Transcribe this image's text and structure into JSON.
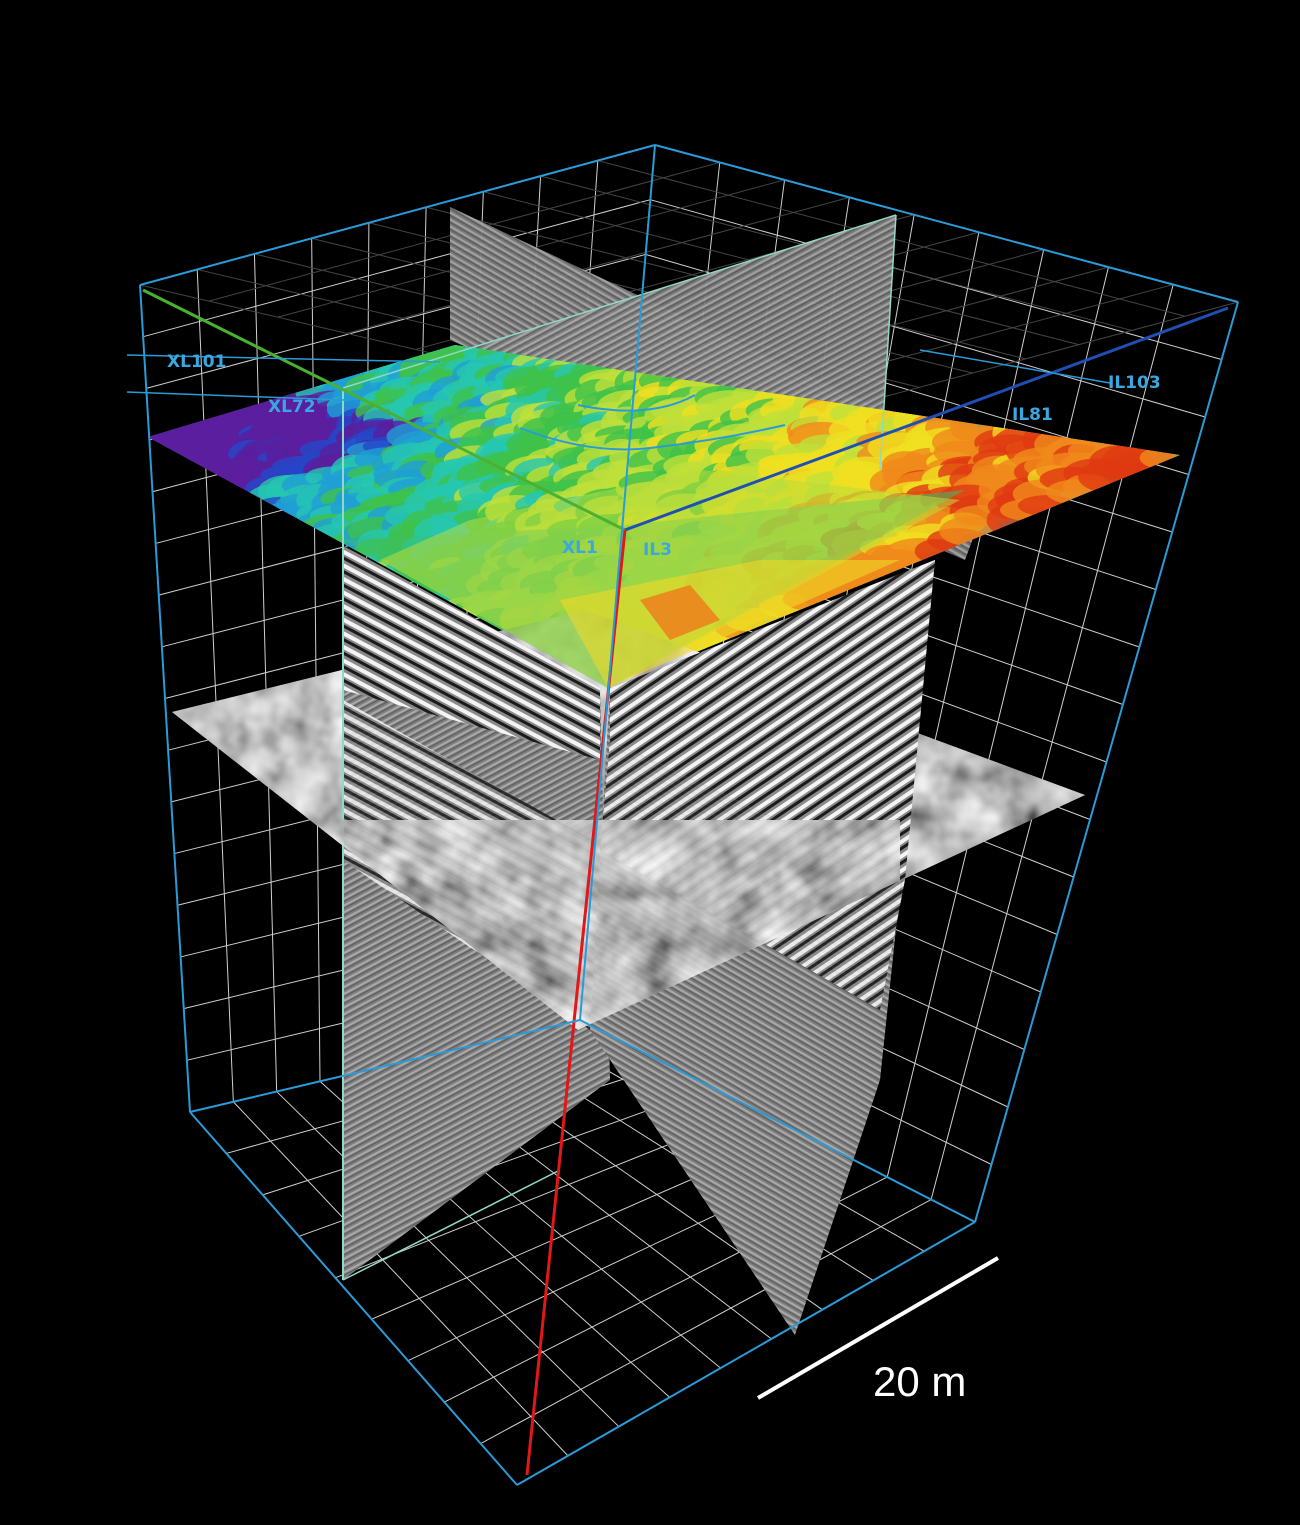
{
  "labels": {
    "xl101": "XL101",
    "xl72": "XL72",
    "il103": "IL103",
    "il81": "IL81",
    "xl1": "XL1",
    "il3": "IL3"
  },
  "scale_bar": {
    "text": "20 m"
  },
  "colors": {
    "background": "#000000",
    "grid_line": "#dddddd",
    "box_edge": "#2a9bd8",
    "label": "#3aa8e0",
    "inline_axis": "#1f4fb5",
    "crossline_axis": "#4cb030",
    "depth_axis": "#e01818",
    "slice_border": "#8fd9c8",
    "scale_bar": "#ffffff"
  },
  "horizon_colormap": [
    "#5a1e9e",
    "#2646c8",
    "#1f9fd6",
    "#25c7b0",
    "#3ec24a",
    "#bfe03a",
    "#f0e020",
    "#f08a1a",
    "#e03a12"
  ]
}
